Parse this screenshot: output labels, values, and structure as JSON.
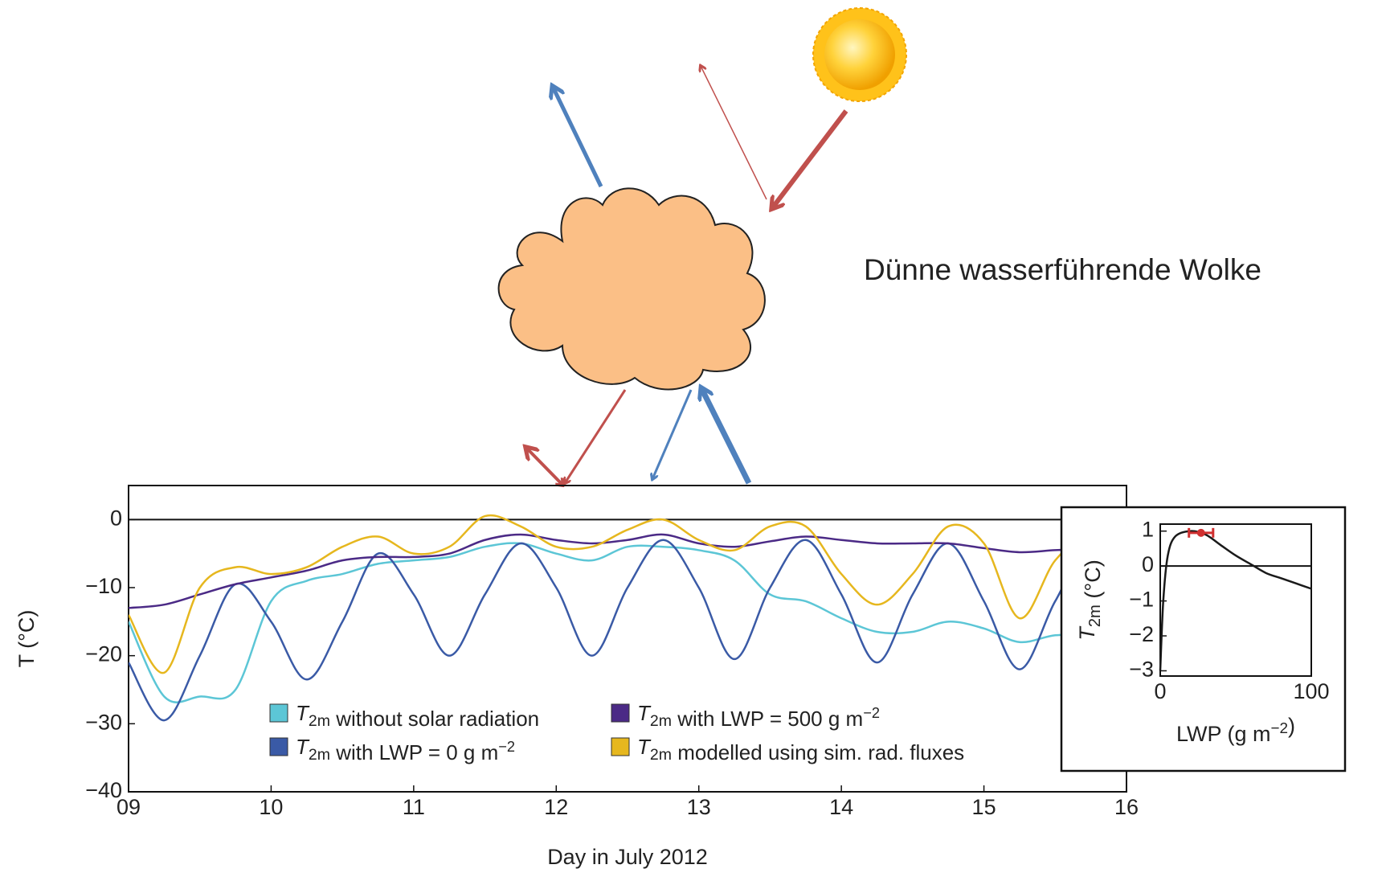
{
  "diagram": {
    "label": "Dünne wasserführende Wolke"
  },
  "chart_data": [
    {
      "type": "line",
      "x_label": "Day in July 2012",
      "y_label": "T (°C)",
      "x": [
        9,
        9.25,
        9.5,
        9.75,
        10,
        10.25,
        10.5,
        10.75,
        11,
        11.25,
        11.5,
        11.75,
        12,
        12.25,
        12.5,
        12.75,
        13,
        13.25,
        13.5,
        13.75,
        14,
        14.25,
        14.5,
        14.75,
        15,
        15.25,
        15.5,
        15.75,
        16
      ],
      "xlim": [
        9,
        16
      ],
      "xticks": [
        {
          "value": 9,
          "label": "09"
        },
        10,
        11,
        12,
        13,
        14,
        15,
        16
      ],
      "ylim": [
        -40,
        5
      ],
      "yticks": [
        0,
        {
          "value": -10,
          "label": "−10"
        },
        {
          "value": -20,
          "label": "−20"
        },
        {
          "value": -30,
          "label": "−30"
        },
        {
          "value": -40,
          "label": "−40"
        }
      ],
      "zero_line": true,
      "series": [
        {
          "name": "T2m without solar radiation",
          "color": "#5cc6d6",
          "values": [
            -15,
            -26,
            -26,
            -25,
            -12,
            -9,
            -8,
            -6.5,
            -6,
            -5.5,
            -4,
            -3.5,
            -5,
            -6,
            -4,
            -4,
            -4.5,
            -6,
            -11,
            -12,
            -14.5,
            -16.5,
            -16.5,
            -15,
            -16,
            -18,
            -17,
            -17,
            -17
          ]
        },
        {
          "name": "T2m with LWP = 0 g m−2",
          "color": "#3a5aa6",
          "values": [
            -21,
            -29.5,
            -20,
            -9.5,
            -15,
            -23.5,
            -15,
            -5,
            -11,
            -20,
            -11,
            -3.5,
            -10,
            -20,
            -10,
            -3,
            -10,
            -20.5,
            -10,
            -3,
            -11,
            -21,
            -11,
            -3.5,
            -12,
            -22,
            -12,
            -4,
            -12
          ]
        },
        {
          "name": "T2m with LWP = 500 g m−2",
          "color": "#4b2a86",
          "values": [
            -13,
            -12.5,
            -11,
            -9.5,
            -8.5,
            -7.5,
            -6,
            -5.5,
            -5.5,
            -5,
            -3,
            -2.2,
            -3,
            -3.5,
            -3,
            -2.2,
            -3.5,
            -4,
            -3.2,
            -2.5,
            -3,
            -3.5,
            -3.5,
            -3.5,
            -4.2,
            -4.8,
            -4.5,
            -4.3,
            -4.2
          ]
        },
        {
          "name": "T2m modelled using sim. rad. fluxes",
          "color": "#e6b71e",
          "values": [
            -14,
            -22.5,
            -10,
            -7,
            -8,
            -7,
            -4,
            -2.5,
            -5,
            -4,
            0.5,
            -1,
            -4,
            -4,
            -1.5,
            0,
            -3,
            -4.5,
            -1,
            -1,
            -8,
            -12.5,
            -8,
            -1,
            -3.5,
            -14.5,
            -6,
            -2,
            -2
          ]
        }
      ]
    },
    {
      "type": "line",
      "x_label": "LWP (g m−2)",
      "y_label": "T2m (°C)",
      "x": [
        0,
        2,
        5,
        10,
        20,
        30,
        40,
        50,
        60,
        70,
        80,
        90,
        100
      ],
      "xlim": [
        0,
        100
      ],
      "xticks": [
        0,
        100
      ],
      "ylim": [
        -3.15,
        1.2
      ],
      "yticks": [
        1,
        0,
        {
          "value": -1,
          "label": "−1"
        },
        {
          "value": -2,
          "label": "−2"
        },
        {
          "value": -3,
          "label": "−3"
        }
      ],
      "zero_line": true,
      "series": [
        {
          "color": "#1a1a1a",
          "values": [
            -3,
            -1,
            0.3,
            0.85,
            1.0,
            0.9,
            0.6,
            0.3,
            0.05,
            -0.2,
            -0.35,
            -0.5,
            -0.65
          ]
        }
      ],
      "markers": [
        {
          "x": 27,
          "y": 0.95,
          "xerr": 8,
          "color": "#d03030"
        }
      ]
    }
  ]
}
